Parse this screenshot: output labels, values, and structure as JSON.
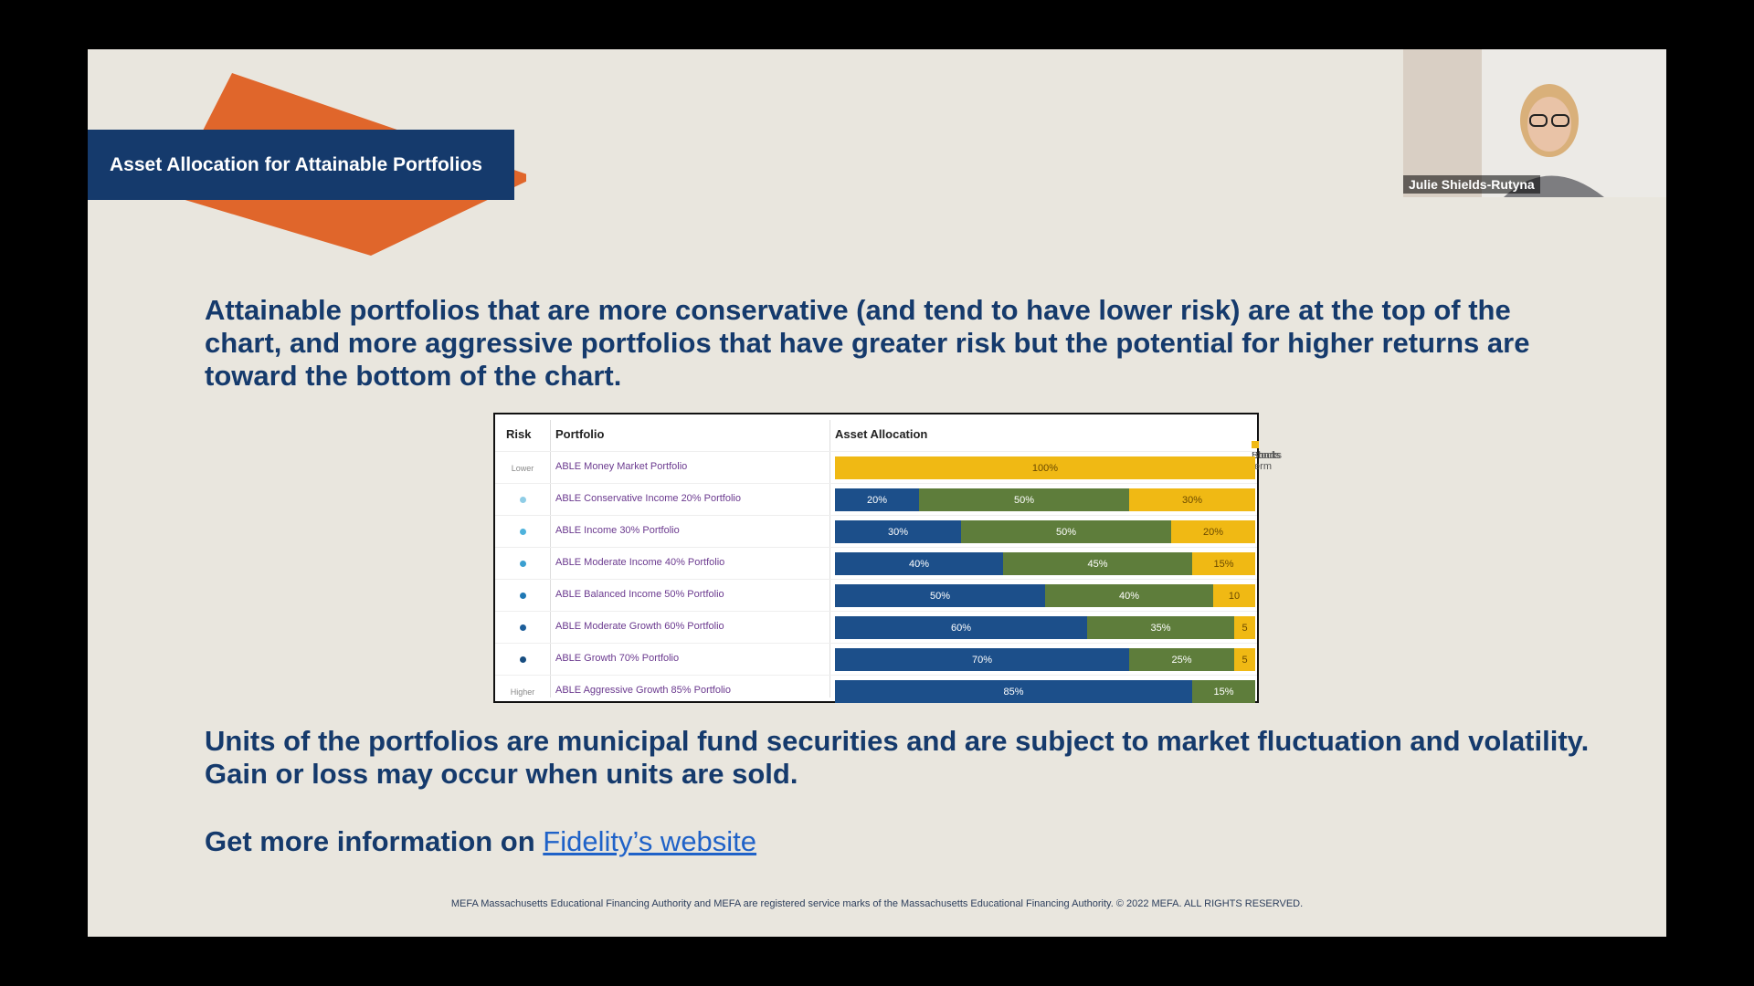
{
  "slide": {
    "title": "Asset Allocation for Attainable Portfolios",
    "intro": "Attainable portfolios that are more conservative (and tend to have lower risk) are at the top of the chart, and more aggressive portfolios that have greater risk but the potential for higher returns are toward the bottom of the chart.",
    "disclaimer": "Units of the portfolios are municipal fund securities and are subject to market fluctuation and volatility. Gain or loss may occur when units are sold.",
    "more_info_prefix": "Get more information on ",
    "more_info_link": "Fidelity’s website",
    "footer": "MEFA Massachusetts Educational Financing Authority and MEFA are registered service marks of the Massachusetts Educational Financing Authority. © 2022 MEFA. ALL RIGHTS RESERVED."
  },
  "video": {
    "participant_name": "Julie Shields-Rutyna"
  },
  "colors": {
    "accent_orange": "#e0662b",
    "navy": "#153a6c",
    "stocks": "#1c4f8a",
    "bonds": "#5e7d3b",
    "short_term": "#f0b914"
  },
  "chart_data": {
    "type": "bar",
    "stacked": true,
    "orientation": "horizontal",
    "headers": {
      "risk": "Risk",
      "portfolio": "Portfolio",
      "allocation": "Asset Allocation"
    },
    "legend": [
      "Stocks",
      "Bonds",
      "Short-term"
    ],
    "risk_labels": {
      "top": "Lower",
      "bottom": "Higher"
    },
    "categories": [
      "ABLE Money Market Portfolio",
      "ABLE Conservative Income 20% Portfolio",
      "ABLE Income 30% Portfolio",
      "ABLE Moderate Income 40% Portfolio",
      "ABLE Balanced Income 50% Portfolio",
      "ABLE Moderate Growth 60% Portfolio",
      "ABLE Growth 70% Portfolio",
      "ABLE Aggressive Growth 85% Portfolio"
    ],
    "series": [
      {
        "name": "Stocks",
        "values": [
          0,
          20,
          30,
          40,
          50,
          60,
          70,
          85
        ]
      },
      {
        "name": "Bonds",
        "values": [
          0,
          50,
          50,
          45,
          40,
          35,
          25,
          15
        ]
      },
      {
        "name": "Short-term",
        "values": [
          100,
          30,
          20,
          15,
          10,
          5,
          5,
          0
        ]
      }
    ],
    "data_labels": [
      [
        "",
        "",
        "100%"
      ],
      [
        "20%",
        "50%",
        "30%"
      ],
      [
        "30%",
        "50%",
        "20%"
      ],
      [
        "40%",
        "45%",
        "15%"
      ],
      [
        "50%",
        "40%",
        "10"
      ],
      [
        "60%",
        "35%",
        "5"
      ],
      [
        "70%",
        "25%",
        "5"
      ],
      [
        "85%",
        "15%",
        ""
      ]
    ],
    "risk_dot_colors": [
      "",
      "#8fcde6",
      "#4eb2dc",
      "#3a9fd0",
      "#1f78b4",
      "#1c5e9a",
      "#174d80",
      ""
    ],
    "xlim": [
      0,
      100
    ]
  }
}
